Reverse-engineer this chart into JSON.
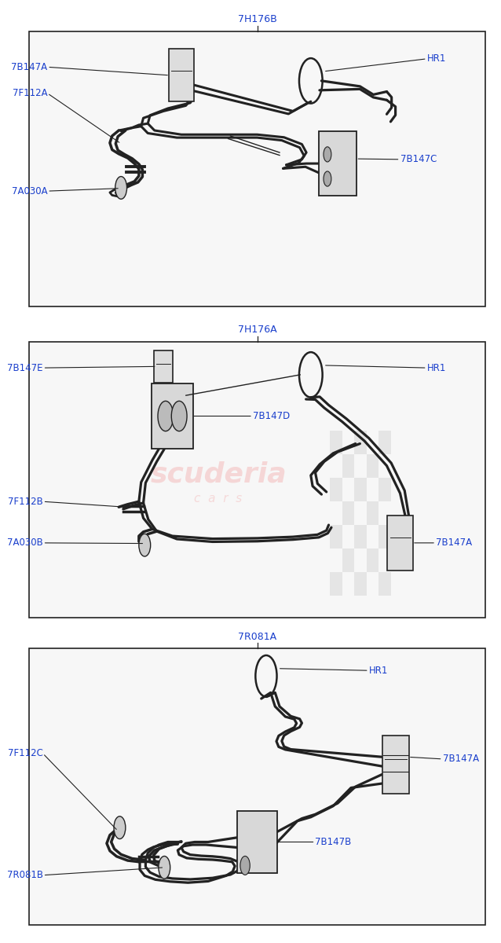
{
  "label_color": "#1a3fcc",
  "line_color": "#222222",
  "border_color": "#222222",
  "panel_bg": "#f8f8f8",
  "panels": [
    {
      "title": "7H176B",
      "yb": 0.675,
      "yt": 0.968
    },
    {
      "title": "7H176A",
      "yb": 0.345,
      "yt": 0.638
    },
    {
      "title": "7R081A",
      "yb": 0.018,
      "yt": 0.312
    }
  ]
}
